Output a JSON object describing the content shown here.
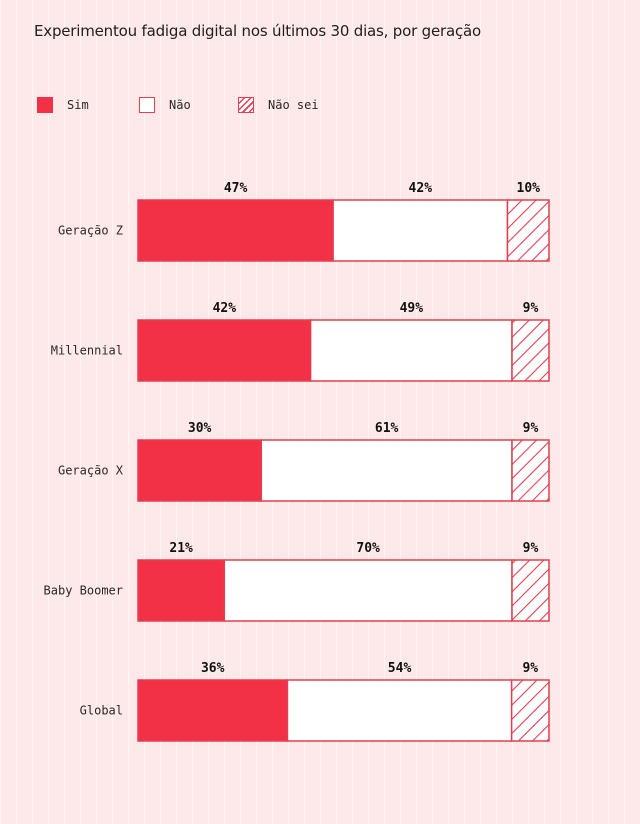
{
  "title": "Experimentou fadiga digital nos últimos 30 dias, por geração",
  "colors": {
    "sim": "#f23046",
    "border": "#e0404f",
    "nao": "#ffffff",
    "background": "#fde9e9"
  },
  "legend": [
    {
      "label": "Sim",
      "style": "solid"
    },
    {
      "label": "Não",
      "style": "outline"
    },
    {
      "label": "Não sei",
      "style": "hatched"
    }
  ],
  "chart_data": {
    "type": "bar",
    "orientation": "horizontal",
    "stacked": true,
    "normalized_percent": true,
    "title": "Experimentou fadiga digital nos últimos 30 dias, por geração",
    "categories": [
      "Geração Z",
      "Millennial",
      "Geração X",
      "Baby Boomer",
      "Global"
    ],
    "series": [
      {
        "name": "Sim",
        "values": [
          47,
          42,
          30,
          21,
          36
        ],
        "labels": [
          "47%",
          "42%",
          "30%",
          "21%",
          "36%"
        ]
      },
      {
        "name": "Não",
        "values": [
          42,
          49,
          61,
          70,
          54
        ],
        "labels": [
          "42%",
          "49%",
          "61%",
          "70%",
          "54%"
        ]
      },
      {
        "name": "Não sei",
        "values": [
          10,
          9,
          9,
          9,
          9
        ],
        "labels": [
          "10%",
          "9%",
          "9%",
          "9%",
          "9%"
        ]
      }
    ],
    "legend_position": "top-left",
    "grid": false
  }
}
